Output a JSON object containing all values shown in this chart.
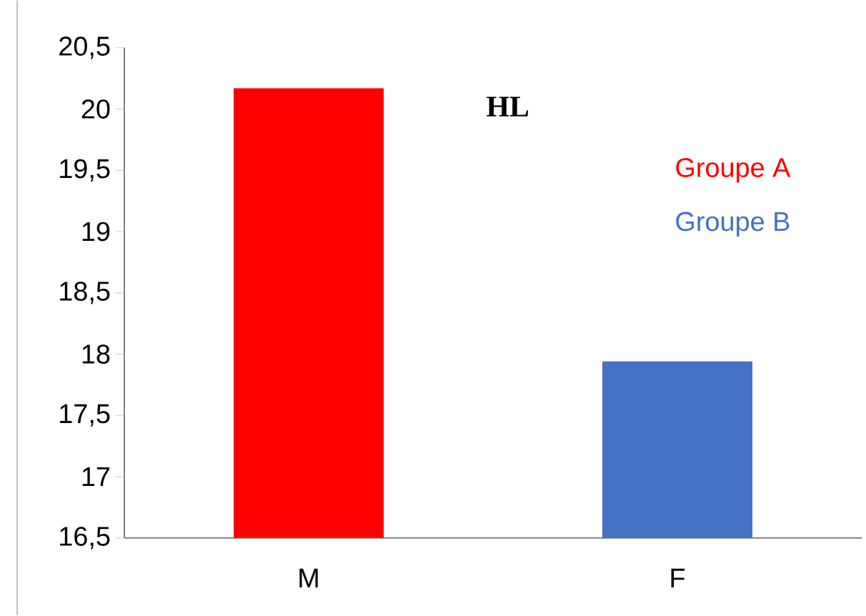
{
  "chart_data": {
    "type": "bar",
    "title": "HL",
    "categories": [
      "M",
      "F"
    ],
    "series": [
      {
        "name": "Groupe A",
        "color": "#ff0000",
        "values": [
          20.17,
          null
        ]
      },
      {
        "name": "Groupe B",
        "color": "#4472c4",
        "values": [
          null,
          17.94
        ]
      }
    ],
    "ylim": [
      16.5,
      20.5
    ],
    "yticks": [
      {
        "value": 16.5,
        "label": "16,5"
      },
      17,
      {
        "value": 17.5,
        "label": "17,5"
      },
      18,
      {
        "value": 18.5,
        "label": "18,5"
      },
      19,
      {
        "value": 19.5,
        "label": "19,5"
      },
      20,
      {
        "value": 20.5,
        "label": "20,5"
      }
    ],
    "grid": false,
    "legend": "top right"
  }
}
